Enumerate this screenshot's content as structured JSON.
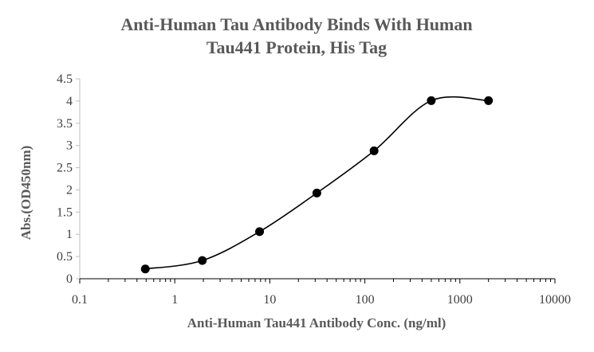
{
  "chart_data": {
    "type": "scatter",
    "title_lines": [
      "Anti-Human Tau Antibody Binds With Human",
      "Tau441 Protein, His Tag"
    ],
    "xlabel": "Anti-Human Tau441 Antibody Conc. (ng/ml)",
    "ylabel": "Abs.(OD450nm)",
    "x_scale": "log",
    "xlim": [
      0.1,
      10000
    ],
    "ylim": [
      0,
      4.5
    ],
    "x_tick_labels": [
      "0.1",
      "1",
      "10",
      "100",
      "1000",
      "10000"
    ],
    "y_tick_labels": [
      "0",
      "0.5",
      "1",
      "1.5",
      "2",
      "2.5",
      "3",
      "3.5",
      "4",
      "4.5"
    ],
    "grid": false,
    "legend": "none",
    "series": [
      {
        "x": [
          0.49,
          1.95,
          7.8,
          31.25,
          125,
          500,
          2000
        ],
        "y": [
          0.22,
          0.41,
          1.06,
          1.93,
          2.88,
          4.01,
          4.01
        ],
        "marker": "circle",
        "line": "smooth",
        "color": "#000000"
      }
    ]
  }
}
